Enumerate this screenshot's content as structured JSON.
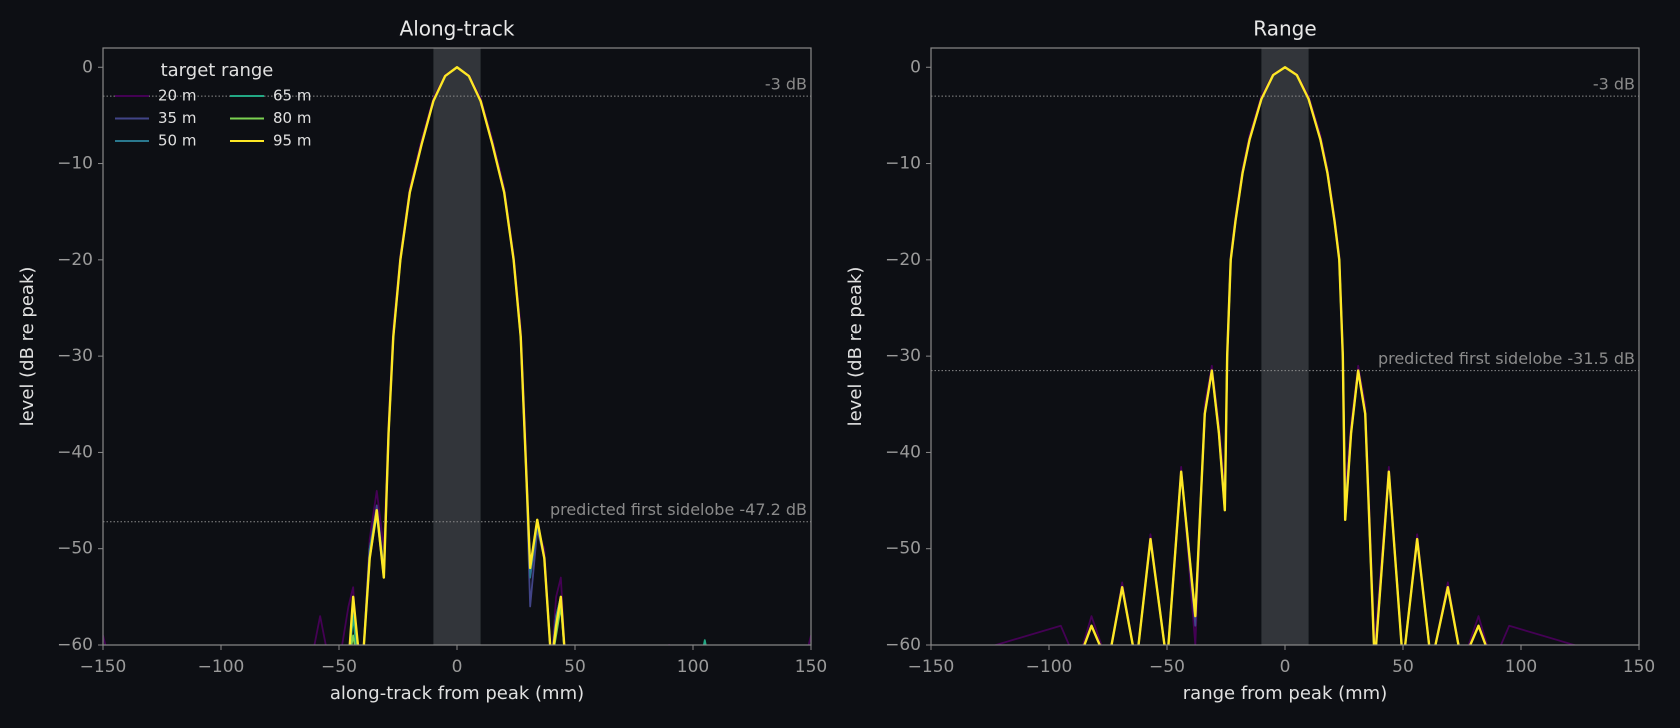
{
  "chart_data": [
    {
      "type": "line",
      "title": "Along-track",
      "xlabel": "along-track from peak (mm)",
      "ylabel": "level (dB re peak)",
      "xlim": [
        -150,
        150
      ],
      "ylim": [
        -60,
        2
      ],
      "xticks": [
        {
          "value": -150,
          "label": "−150"
        },
        {
          "value": -100,
          "label": "−100"
        },
        {
          "value": -50,
          "label": "−50"
        },
        0,
        50,
        100,
        150
      ],
      "yticks": [
        {
          "value": -60,
          "label": "−60"
        },
        {
          "value": -50,
          "label": "−50"
        },
        {
          "value": -40,
          "label": "−40"
        },
        {
          "value": -30,
          "label": "−30"
        },
        {
          "value": -20,
          "label": "−20"
        },
        {
          "value": -10,
          "label": "−10"
        },
        0
      ],
      "band": [
        -10,
        10
      ],
      "annotations": [
        {
          "y": -3,
          "text": "-3 dB"
        },
        {
          "y": -47.2,
          "text": "predicted first sidelobe -47.2 dB"
        }
      ],
      "legend": {
        "title": "target range",
        "loc": "upper left",
        "ncol": 2
      },
      "x": [
        -150,
        -147,
        -62,
        -58,
        -54,
        -50,
        -46,
        -44,
        -42,
        -40,
        -37,
        -34,
        -31,
        -29,
        -27,
        -24,
        -20,
        -15,
        -10,
        -5,
        0,
        5,
        10,
        15,
        20,
        24,
        27,
        29,
        31,
        34,
        37,
        40,
        42,
        44,
        46,
        50,
        54,
        58,
        90,
        103,
        105,
        107,
        147,
        150
      ],
      "series": [
        {
          "name": "20 m",
          "color": "#440154",
          "values": [
            -59,
            -62,
            -62,
            -57,
            -62,
            -62,
            -56,
            -54,
            -62,
            -62,
            -49,
            -44,
            -50,
            -37,
            -27,
            -19.5,
            -12.5,
            -7.5,
            -3.2,
            -0.8,
            0,
            -0.8,
            -3.2,
            -7.5,
            -12.5,
            -19.5,
            -27,
            -38,
            -53,
            -48,
            -50,
            -62,
            -55,
            -53,
            -62,
            -62,
            -62,
            -62,
            -60,
            -62,
            -62,
            -62,
            -62,
            -59
          ]
        },
        {
          "name": "35 m",
          "color": "#414487",
          "values": [
            -62,
            -62,
            -62,
            -62,
            -62,
            -62,
            -62,
            -55,
            -62,
            -62,
            -50,
            -45.5,
            -52,
            -38,
            -28,
            -20,
            -13,
            -8,
            -3.5,
            -0.9,
            0,
            -0.9,
            -3.5,
            -8,
            -13,
            -20,
            -28,
            -40,
            -56,
            -48,
            -51,
            -62,
            -57,
            -55,
            -62,
            -62,
            -62,
            -62,
            -62,
            -62,
            -62,
            -62,
            -62,
            -62
          ]
        },
        {
          "name": "50 m",
          "color": "#2a788e",
          "values": [
            -62,
            -62,
            -62,
            -62,
            -62,
            -62,
            -62,
            -56,
            -62,
            -62,
            -50,
            -46,
            -53,
            -38,
            -28,
            -20,
            -13,
            -8,
            -3.5,
            -0.9,
            0,
            -0.9,
            -3.5,
            -8,
            -13,
            -20,
            -28,
            -40,
            -53,
            -47.5,
            -51,
            -62,
            -57,
            -55,
            -62,
            -62,
            -62,
            -62,
            -62,
            -62,
            -62,
            -62,
            -62,
            -62
          ]
        },
        {
          "name": "65 m",
          "color": "#22a884",
          "values": [
            -62,
            -62,
            -62,
            -62,
            -62,
            -62,
            -62,
            -57,
            -62,
            -62,
            -51,
            -46.5,
            -53,
            -38,
            -28,
            -20,
            -13,
            -8,
            -3.5,
            -0.9,
            0,
            -0.9,
            -3.5,
            -8,
            -13,
            -20,
            -28,
            -40,
            -52,
            -47,
            -51,
            -62,
            -58,
            -55.5,
            -62,
            -62,
            -62,
            -62,
            -62,
            -62,
            -59.5,
            -62,
            -62,
            -62
          ]
        },
        {
          "name": "80 m",
          "color": "#7ad151",
          "values": [
            -62,
            -62,
            -62,
            -62,
            -62,
            -62,
            -62,
            -59,
            -62,
            -62,
            -51,
            -46,
            -52.5,
            -38,
            -28,
            -20,
            -13,
            -8,
            -3.5,
            -0.9,
            0,
            -0.9,
            -3.5,
            -8,
            -13,
            -20,
            -28,
            -40,
            -52,
            -47,
            -51,
            -62,
            -59,
            -56,
            -62,
            -62,
            -62,
            -62,
            -62,
            -62,
            -62,
            -62,
            -62,
            -62
          ]
        },
        {
          "name": "95 m",
          "color": "#fde725",
          "values": [
            -62,
            -62,
            -62,
            -62,
            -62,
            -62,
            -62,
            -55,
            -60,
            -62,
            -51,
            -46,
            -53,
            -38,
            -28,
            -20,
            -13,
            -8,
            -3.5,
            -0.9,
            0,
            -0.9,
            -3.5,
            -8,
            -13,
            -20,
            -28,
            -40,
            -52,
            -47,
            -51,
            -62,
            -58,
            -55,
            -62,
            -62,
            -62,
            -62,
            -62,
            -62,
            -62,
            -62,
            -62,
            -62
          ]
        }
      ]
    },
    {
      "type": "line",
      "title": "Range",
      "xlabel": "range from peak (mm)",
      "ylabel": "level (dB re peak)",
      "xlim": [
        -150,
        150
      ],
      "ylim": [
        -60,
        2
      ],
      "xticks": [
        {
          "value": -150,
          "label": "−150"
        },
        {
          "value": -100,
          "label": "−100"
        },
        {
          "value": -50,
          "label": "−50"
        },
        0,
        50,
        100,
        150
      ],
      "yticks": [
        {
          "value": -60,
          "label": "−60"
        },
        {
          "value": -50,
          "label": "−50"
        },
        {
          "value": -40,
          "label": "−40"
        },
        {
          "value": -30,
          "label": "−30"
        },
        {
          "value": -20,
          "label": "−20"
        },
        {
          "value": -10,
          "label": "−10"
        },
        0
      ],
      "band": [
        -10,
        10
      ],
      "annotations": [
        {
          "y": -3,
          "text": "-3 dB"
        },
        {
          "y": -31.5,
          "text": "predicted first sidelobe -31.5 dB"
        }
      ],
      "x": [
        -150,
        -95,
        -88,
        -82,
        -75,
        -69,
        -63,
        -57,
        -50,
        -44,
        -38,
        -34,
        -31,
        -28,
        -25.5,
        -24.5,
        -23,
        -21,
        -18,
        -15,
        -10,
        -5,
        0,
        5,
        10,
        15,
        18,
        21,
        23,
        24.5,
        25.5,
        28,
        31,
        34,
        38,
        44,
        50,
        56,
        62,
        69,
        75,
        82,
        88,
        95,
        150
      ],
      "series": [
        {
          "name": "20 m",
          "color": "#440154",
          "values": [
            -62,
            -58,
            -62,
            -57,
            -62,
            -53.5,
            -62,
            -48.5,
            -62,
            -41.5,
            -60,
            -35,
            -31,
            -37,
            -44,
            -29,
            -19.5,
            -15.5,
            -10.5,
            -7,
            -3,
            -0.7,
            0,
            -0.7,
            -3,
            -7,
            -10.5,
            -15.5,
            -19.5,
            -29,
            -44,
            -37,
            -31,
            -35,
            -60,
            -41.5,
            -62,
            -48.5,
            -62,
            -53.5,
            -62,
            -57,
            -62,
            -58,
            -62
          ]
        },
        {
          "name": "35 m",
          "color": "#414487",
          "values": [
            -62,
            -62,
            -62,
            -58,
            -62,
            -54,
            -62,
            -49,
            -62,
            -42,
            -58,
            -36,
            -31.5,
            -38,
            -46,
            -30,
            -20,
            -16,
            -11,
            -7.5,
            -3.3,
            -0.8,
            0,
            -0.8,
            -3.3,
            -7.5,
            -11,
            -16,
            -20,
            -30,
            -46,
            -38,
            -31.5,
            -36,
            -62,
            -42,
            -62,
            -49,
            -62,
            -54,
            -62,
            -58,
            -62,
            -62,
            -62
          ]
        },
        {
          "name": "50 m",
          "color": "#2a788e",
          "values": [
            -62,
            -62,
            -62,
            -58,
            -62,
            -54,
            -62,
            -49,
            -62,
            -42,
            -57,
            -36,
            -31.5,
            -38,
            -46,
            -30,
            -20,
            -16,
            -11,
            -7.5,
            -3.3,
            -0.8,
            0,
            -0.8,
            -3.3,
            -7.5,
            -11,
            -16,
            -20,
            -30,
            -46,
            -38,
            -31.5,
            -36,
            -62,
            -42,
            -62,
            -49,
            -62,
            -54,
            -62,
            -58,
            -62,
            -62,
            -62
          ]
        },
        {
          "name": "65 m",
          "color": "#22a884",
          "values": [
            -62,
            -62,
            -62,
            -58,
            -62,
            -54,
            -62,
            -49,
            -62,
            -42,
            -57,
            -36,
            -31.5,
            -38,
            -46,
            -30,
            -20,
            -16,
            -11,
            -7.5,
            -3.3,
            -0.8,
            0,
            -0.8,
            -3.3,
            -7.5,
            -11,
            -16,
            -20,
            -30,
            -47,
            -38,
            -31.5,
            -36,
            -62,
            -42,
            -62,
            -49,
            -62,
            -54,
            -62,
            -58,
            -62,
            -62,
            -62
          ]
        },
        {
          "name": "80 m",
          "color": "#7ad151",
          "values": [
            -62,
            -62,
            -62,
            -58,
            -62,
            -54,
            -62,
            -49,
            -62,
            -42,
            -57,
            -36,
            -31.5,
            -38,
            -46,
            -30,
            -20,
            -16,
            -11,
            -7.5,
            -3.3,
            -0.8,
            0,
            -0.8,
            -3.3,
            -7.5,
            -11,
            -16,
            -20,
            -30,
            -47,
            -38,
            -31.5,
            -36,
            -62,
            -42,
            -62,
            -49,
            -62,
            -54,
            -62,
            -58,
            -62,
            -62,
            -62
          ]
        },
        {
          "name": "95 m",
          "color": "#fde725",
          "values": [
            -62,
            -62,
            -62,
            -58,
            -62,
            -54,
            -62,
            -49,
            -62,
            -42,
            -57,
            -36,
            -31.5,
            -38,
            -46,
            -30,
            -20,
            -16,
            -11,
            -7.5,
            -3.3,
            -0.8,
            0,
            -0.8,
            -3.3,
            -7.5,
            -11,
            -16,
            -20,
            -30,
            -47,
            -38,
            -31.5,
            -36,
            -62,
            -42,
            -62,
            -49,
            -62,
            -54,
            -62,
            -58,
            -62,
            -62,
            -62
          ]
        }
      ]
    }
  ]
}
